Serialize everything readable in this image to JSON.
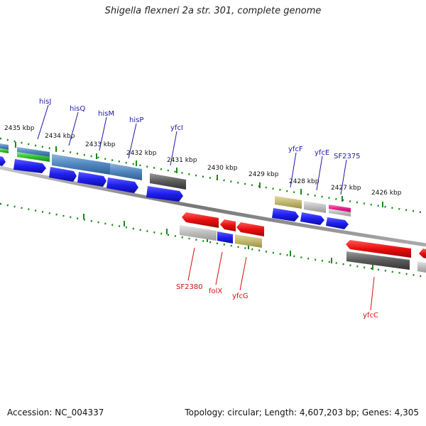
{
  "title": "Shigella flexneri 2a str. 301, complete genome",
  "footer": {
    "accession": "Accession: NC_004337",
    "info": "Topology: circular; Length: 4,607,203 bp; Genes: 4,305"
  },
  "colors": {
    "forward_gene": "#1f1ff0",
    "reverse_gene": "#e80d0d",
    "tick_green": "#1a8a1a",
    "backbone": "#888888",
    "top_label": "#1a1aa6",
    "bottom_label": "#d01010"
  },
  "scale_labels": [
    "2435 kbp",
    "2434 kbp",
    "2433 kbp",
    "2432 kbp",
    "2431 kbp",
    "2430 kbp",
    "2429 kbp",
    "2428 kbp",
    "2427 kbp",
    "2426 kbp"
  ],
  "top_gene_labels": [
    "hisJ",
    "hisQ",
    "hisM",
    "hisP",
    "yfcI",
    "yfcF",
    "yfcE",
    "SF2375"
  ],
  "bottom_gene_labels": [
    "SF2380",
    "folX",
    "yfcG",
    "yfcC"
  ]
}
